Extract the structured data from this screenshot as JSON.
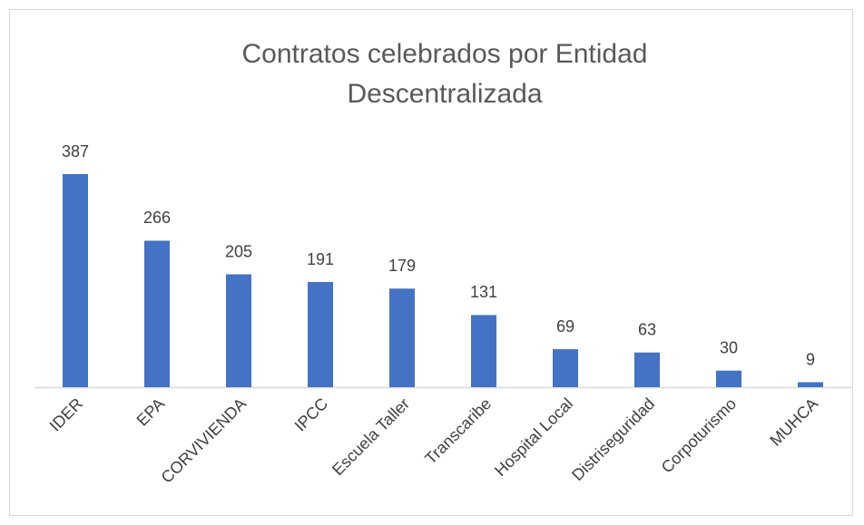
{
  "chart_data": {
    "type": "bar",
    "title": "Contratos celebrados por Entidad Descentralizada",
    "categories": [
      "IDER",
      "EPA",
      "CORVIVIENDA",
      "IPCC",
      "Escuela Taller",
      "Transcaribe",
      "Hospital Local",
      "Distriseguridad",
      "Corpoturismo",
      "MUHCA"
    ],
    "values": [
      387,
      266,
      205,
      191,
      179,
      131,
      69,
      63,
      30,
      9
    ],
    "color": "#4472c4"
  }
}
